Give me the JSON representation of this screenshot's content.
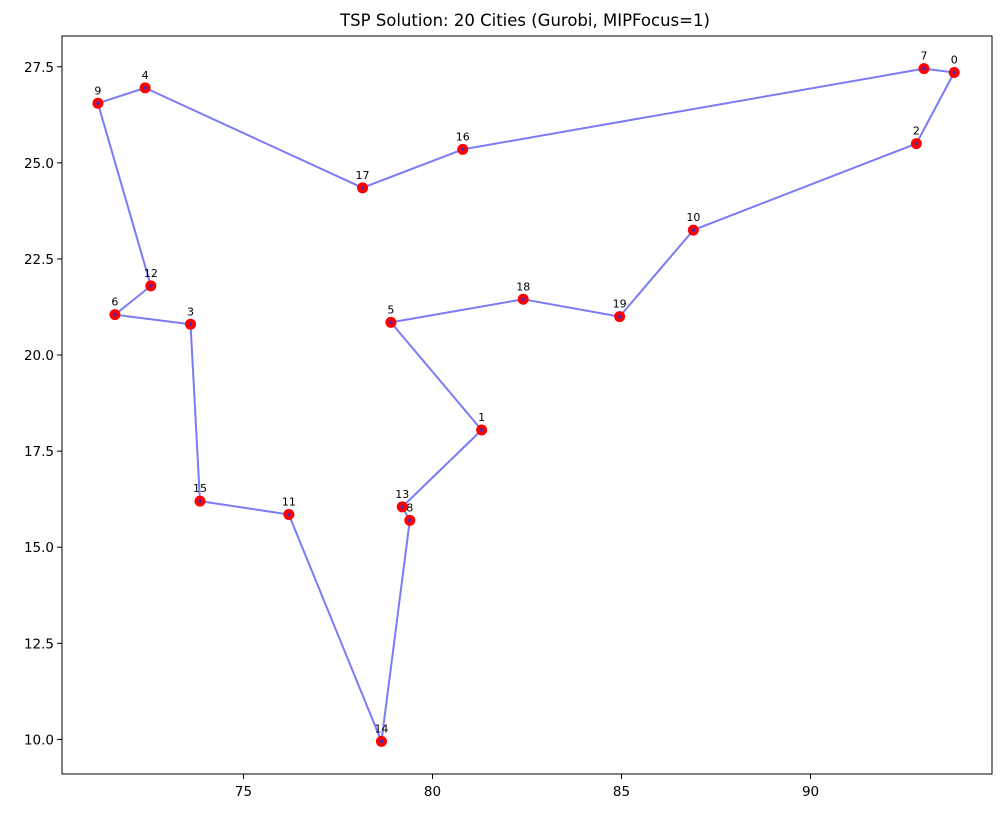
{
  "chart_data": {
    "type": "scatter",
    "title": "TSP Solution: 20 Cities (Gurobi, MIPFocus=1)",
    "xlabel": "",
    "ylabel": "",
    "xlim": [
      70.2,
      94.8
    ],
    "ylim": [
      9.1,
      28.3
    ],
    "xticks": [
      75,
      80,
      85,
      90
    ],
    "xtick_labels": [
      "75",
      "80",
      "85",
      "90"
    ],
    "yticks": [
      10.0,
      12.5,
      15.0,
      17.5,
      20.0,
      22.5,
      25.0,
      27.5
    ],
    "ytick_labels": [
      "10.0",
      "12.5",
      "15.0",
      "17.5",
      "20.0",
      "22.5",
      "25.0",
      "27.5"
    ],
    "grid": false,
    "colors": {
      "route": "#7b7bf7",
      "city": "#ff0000",
      "city_dot": "#3333cc"
    },
    "cities": [
      {
        "id": "0",
        "x": 93.8,
        "y": 27.35
      },
      {
        "id": "1",
        "x": 81.3,
        "y": 18.05
      },
      {
        "id": "2",
        "x": 92.8,
        "y": 25.5
      },
      {
        "id": "3",
        "x": 73.6,
        "y": 20.8
      },
      {
        "id": "4",
        "x": 72.4,
        "y": 26.95
      },
      {
        "id": "5",
        "x": 78.9,
        "y": 20.85
      },
      {
        "id": "6",
        "x": 71.6,
        "y": 21.05
      },
      {
        "id": "7",
        "x": 93.0,
        "y": 27.45
      },
      {
        "id": "8",
        "x": 79.4,
        "y": 15.7
      },
      {
        "id": "9",
        "x": 71.15,
        "y": 26.55
      },
      {
        "id": "10",
        "x": 86.9,
        "y": 23.25
      },
      {
        "id": "11",
        "x": 76.2,
        "y": 15.85
      },
      {
        "id": "12",
        "x": 72.55,
        "y": 21.8
      },
      {
        "id": "13",
        "x": 79.2,
        "y": 16.05
      },
      {
        "id": "14",
        "x": 78.65,
        "y": 9.95
      },
      {
        "id": "15",
        "x": 73.85,
        "y": 16.2
      },
      {
        "id": "16",
        "x": 80.8,
        "y": 25.35
      },
      {
        "id": "17",
        "x": 78.15,
        "y": 24.35
      },
      {
        "id": "18",
        "x": 82.4,
        "y": 21.45
      },
      {
        "id": "19",
        "x": 84.95,
        "y": 21.0
      }
    ],
    "tour": [
      "0",
      "7",
      "16",
      "17",
      "4",
      "9",
      "12",
      "6",
      "3",
      "15",
      "11",
      "14",
      "8",
      "13",
      "1",
      "5",
      "18",
      "19",
      "10",
      "2",
      "0"
    ]
  }
}
